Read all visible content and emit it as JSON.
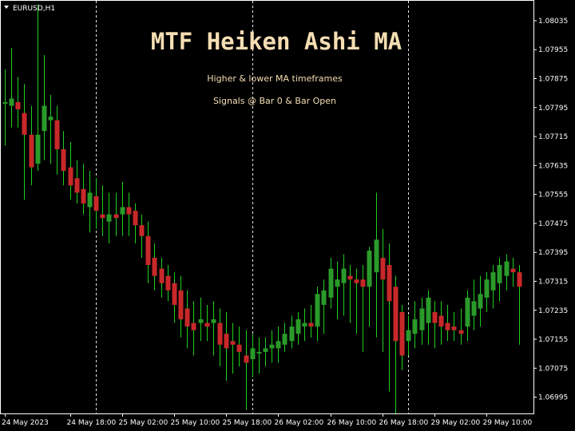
{
  "symbol": "EURUSD,H1",
  "colors": {
    "background": "#000000",
    "up": "#2a9a2a",
    "down": "#c8282a",
    "wick": "#1fcf1f",
    "text": "#ffffff",
    "title": "#f5deb3"
  },
  "chart_data": {
    "type": "candlestick",
    "title": "MTF Heiken Ashi MA",
    "subtitle_lines": [
      "Higher & lower MA timeframes",
      "Signals @ Bar 0 & Bar Open"
    ],
    "ylim": [
      1.0695,
      1.0809
    ],
    "y_ticks": [
      "1.08035",
      "1.07955",
      "1.07875",
      "1.07795",
      "1.07715",
      "1.07635",
      "1.07555",
      "1.07475",
      "1.07395",
      "1.07315",
      "1.07235",
      "1.07155",
      "1.07075",
      "1.06995"
    ],
    "x_ticks": [
      {
        "label": "24 May 2023",
        "index": 0
      },
      {
        "label": "24 May 18:00",
        "index": 10
      },
      {
        "label": "25 May 02:00",
        "index": 18
      },
      {
        "label": "25 May 10:00",
        "index": 26
      },
      {
        "label": "25 May 18:00",
        "index": 34
      },
      {
        "label": "26 May 02:00",
        "index": 42
      },
      {
        "label": "26 May 10:00",
        "index": 50
      },
      {
        "label": "26 May 18:00",
        "index": 58
      },
      {
        "label": "29 May 02:00",
        "index": 66
      },
      {
        "label": "29 May 10:00",
        "index": 74
      }
    ],
    "separators": [
      14,
      38,
      62
    ],
    "candles": [
      {
        "o": 1.0781,
        "h": 1.079,
        "l": 1.0769,
        "c": 1.0781
      },
      {
        "o": 1.078,
        "h": 1.0796,
        "l": 1.0774,
        "c": 1.0782
      },
      {
        "o": 1.0781,
        "h": 1.0788,
        "l": 1.0774,
        "c": 1.0779
      },
      {
        "o": 1.0778,
        "h": 1.0786,
        "l": 1.0754,
        "c": 1.0772
      },
      {
        "o": 1.0772,
        "h": 1.078,
        "l": 1.0758,
        "c": 1.0763
      },
      {
        "o": 1.0764,
        "h": 1.0808,
        "l": 1.0762,
        "c": 1.0772
      },
      {
        "o": 1.0773,
        "h": 1.0794,
        "l": 1.0765,
        "c": 1.078
      },
      {
        "o": 1.0776,
        "h": 1.0783,
        "l": 1.0764,
        "c": 1.0777
      },
      {
        "o": 1.0776,
        "h": 1.078,
        "l": 1.0761,
        "c": 1.0768
      },
      {
        "o": 1.0768,
        "h": 1.0773,
        "l": 1.0758,
        "c": 1.0762
      },
      {
        "o": 1.0763,
        "h": 1.077,
        "l": 1.0754,
        "c": 1.0758
      },
      {
        "o": 1.076,
        "h": 1.0765,
        "l": 1.0753,
        "c": 1.0756
      },
      {
        "o": 1.0757,
        "h": 1.0764,
        "l": 1.075,
        "c": 1.0753
      },
      {
        "o": 1.0752,
        "h": 1.0762,
        "l": 1.0745,
        "c": 1.0756
      },
      {
        "o": 1.0755,
        "h": 1.076,
        "l": 1.0746,
        "c": 1.0751
      },
      {
        "o": 1.075,
        "h": 1.0758,
        "l": 1.0744,
        "c": 1.0749
      },
      {
        "o": 1.0748,
        "h": 1.0756,
        "l": 1.0742,
        "c": 1.075
      },
      {
        "o": 1.075,
        "h": 1.0756,
        "l": 1.0744,
        "c": 1.0749
      },
      {
        "o": 1.075,
        "h": 1.0759,
        "l": 1.0744,
        "c": 1.0752
      },
      {
        "o": 1.0752,
        "h": 1.0756,
        "l": 1.0744,
        "c": 1.075
      },
      {
        "o": 1.0751,
        "h": 1.0753,
        "l": 1.0742,
        "c": 1.0747
      },
      {
        "o": 1.0747,
        "h": 1.075,
        "l": 1.0738,
        "c": 1.0744
      },
      {
        "o": 1.0744,
        "h": 1.0748,
        "l": 1.0731,
        "c": 1.0736
      },
      {
        "o": 1.0738,
        "h": 1.0742,
        "l": 1.0729,
        "c": 1.0733
      },
      {
        "o": 1.0735,
        "h": 1.0738,
        "l": 1.0727,
        "c": 1.0731
      },
      {
        "o": 1.0733,
        "h": 1.0736,
        "l": 1.0726,
        "c": 1.0729
      },
      {
        "o": 1.0731,
        "h": 1.0734,
        "l": 1.072,
        "c": 1.0725
      },
      {
        "o": 1.0729,
        "h": 1.0733,
        "l": 1.0716,
        "c": 1.0721
      },
      {
        "o": 1.0724,
        "h": 1.0729,
        "l": 1.0713,
        "c": 1.0719
      },
      {
        "o": 1.072,
        "h": 1.0726,
        "l": 1.0711,
        "c": 1.0718
      },
      {
        "o": 1.072,
        "h": 1.0727,
        "l": 1.0715,
        "c": 1.0721
      },
      {
        "o": 1.072,
        "h": 1.0725,
        "l": 1.0715,
        "c": 1.0719
      },
      {
        "o": 1.072,
        "h": 1.0726,
        "l": 1.0711,
        "c": 1.0721
      },
      {
        "o": 1.072,
        "h": 1.0724,
        "l": 1.0708,
        "c": 1.0714
      },
      {
        "o": 1.0717,
        "h": 1.0723,
        "l": 1.0704,
        "c": 1.0713
      },
      {
        "o": 1.0715,
        "h": 1.072,
        "l": 1.0706,
        "c": 1.0714
      },
      {
        "o": 1.0714,
        "h": 1.0719,
        "l": 1.0708,
        "c": 1.0712
      },
      {
        "o": 1.0711,
        "h": 1.0718,
        "l": 1.0696,
        "c": 1.0709
      },
      {
        "o": 1.071,
        "h": 1.0717,
        "l": 1.0705,
        "c": 1.0713
      },
      {
        "o": 1.0712,
        "h": 1.0716,
        "l": 1.0706,
        "c": 1.0712
      },
      {
        "o": 1.0712,
        "h": 1.0716,
        "l": 1.0708,
        "c": 1.0713
      },
      {
        "o": 1.0713,
        "h": 1.0718,
        "l": 1.0709,
        "c": 1.0714
      },
      {
        "o": 1.0713,
        "h": 1.0719,
        "l": 1.0709,
        "c": 1.0715
      },
      {
        "o": 1.0714,
        "h": 1.072,
        "l": 1.0712,
        "c": 1.0717
      },
      {
        "o": 1.0715,
        "h": 1.0722,
        "l": 1.0713,
        "c": 1.0719
      },
      {
        "o": 1.0717,
        "h": 1.0723,
        "l": 1.0714,
        "c": 1.0721
      },
      {
        "o": 1.0719,
        "h": 1.0724,
        "l": 1.0715,
        "c": 1.072
      },
      {
        "o": 1.072,
        "h": 1.0725,
        "l": 1.0716,
        "c": 1.0719
      },
      {
        "o": 1.0719,
        "h": 1.073,
        "l": 1.0715,
        "c": 1.0728
      },
      {
        "o": 1.0725,
        "h": 1.0732,
        "l": 1.0717,
        "c": 1.0729
      },
      {
        "o": 1.0727,
        "h": 1.0738,
        "l": 1.0724,
        "c": 1.0735
      },
      {
        "o": 1.073,
        "h": 1.0737,
        "l": 1.0721,
        "c": 1.0732
      },
      {
        "o": 1.0731,
        "h": 1.0739,
        "l": 1.0722,
        "c": 1.0735
      },
      {
        "o": 1.0733,
        "h": 1.0736,
        "l": 1.072,
        "c": 1.0732
      },
      {
        "o": 1.0732,
        "h": 1.0735,
        "l": 1.0717,
        "c": 1.0731
      },
      {
        "o": 1.0732,
        "h": 1.0736,
        "l": 1.0712,
        "c": 1.073
      },
      {
        "o": 1.073,
        "h": 1.0741,
        "l": 1.0719,
        "c": 1.074
      },
      {
        "o": 1.0734,
        "h": 1.0756,
        "l": 1.0716,
        "c": 1.0743
      },
      {
        "o": 1.0738,
        "h": 1.0746,
        "l": 1.0712,
        "c": 1.0732
      },
      {
        "o": 1.0736,
        "h": 1.0742,
        "l": 1.0701,
        "c": 1.0726
      },
      {
        "o": 1.073,
        "h": 1.0733,
        "l": 1.0695,
        "c": 1.0715
      },
      {
        "o": 1.0723,
        "h": 1.0725,
        "l": 1.0707,
        "c": 1.0711
      },
      {
        "o": 1.0715,
        "h": 1.0722,
        "l": 1.0711,
        "c": 1.0718
      },
      {
        "o": 1.0717,
        "h": 1.0726,
        "l": 1.0713,
        "c": 1.0721
      },
      {
        "o": 1.0718,
        "h": 1.0727,
        "l": 1.0714,
        "c": 1.0724
      },
      {
        "o": 1.072,
        "h": 1.0729,
        "l": 1.0714,
        "c": 1.0727
      },
      {
        "o": 1.0723,
        "h": 1.0726,
        "l": 1.0713,
        "c": 1.072
      },
      {
        "o": 1.0722,
        "h": 1.0726,
        "l": 1.0714,
        "c": 1.0719
      },
      {
        "o": 1.072,
        "h": 1.0725,
        "l": 1.0715,
        "c": 1.0718
      },
      {
        "o": 1.0719,
        "h": 1.0723,
        "l": 1.0715,
        "c": 1.0718
      },
      {
        "o": 1.0718,
        "h": 1.0724,
        "l": 1.0714,
        "c": 1.0717
      },
      {
        "o": 1.0719,
        "h": 1.0729,
        "l": 1.0715,
        "c": 1.0727
      },
      {
        "o": 1.0722,
        "h": 1.0732,
        "l": 1.0718,
        "c": 1.0726
      },
      {
        "o": 1.0724,
        "h": 1.0733,
        "l": 1.0719,
        "c": 1.0728
      },
      {
        "o": 1.0727,
        "h": 1.0734,
        "l": 1.0723,
        "c": 1.0732
      },
      {
        "o": 1.0729,
        "h": 1.0736,
        "l": 1.0724,
        "c": 1.0734
      },
      {
        "o": 1.0731,
        "h": 1.0738,
        "l": 1.0726,
        "c": 1.0736
      },
      {
        "o": 1.0733,
        "h": 1.0739,
        "l": 1.0729,
        "c": 1.0737
      },
      {
        "o": 1.0735,
        "h": 1.0738,
        "l": 1.073,
        "c": 1.0734
      },
      {
        "o": 1.0734,
        "h": 1.0736,
        "l": 1.0714,
        "c": 1.073
      }
    ]
  }
}
